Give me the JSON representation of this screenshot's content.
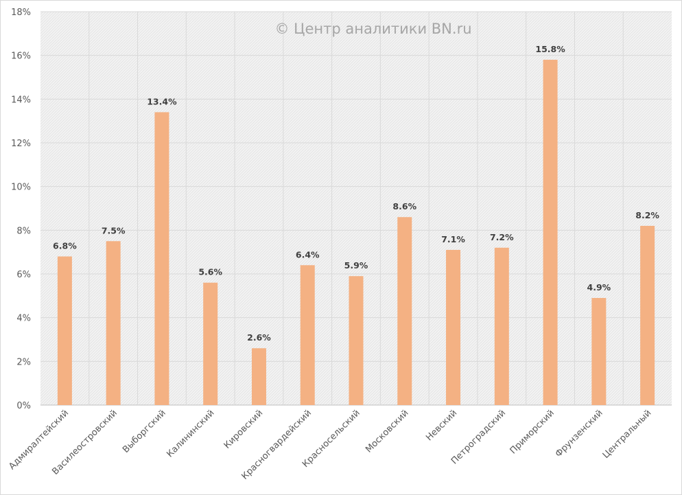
{
  "chart_data": {
    "type": "bar",
    "title": "",
    "watermark": "© Центр аналитики BN.ru",
    "xlabel": "",
    "ylabel": "",
    "categories": [
      "Адмиралтейский",
      "Василеостровский",
      "Выборгский",
      "Калининский",
      "Кировский",
      "Красногвардейский",
      "Красносельский",
      "Московский",
      "Невский",
      "Петроградский",
      "Приморский",
      "Фрунзенский",
      "Центральный"
    ],
    "values": [
      6.8,
      7.5,
      13.4,
      5.6,
      2.6,
      6.4,
      5.9,
      8.6,
      7.1,
      7.2,
      15.8,
      4.9,
      8.2
    ],
    "data_labels": [
      "6.8%",
      "7.5%",
      "13.4%",
      "5.6%",
      "2.6%",
      "6.4%",
      "5.9%",
      "8.6%",
      "7.1%",
      "7.2%",
      "15.8%",
      "4.9%",
      "8.2%"
    ],
    "unit": "%",
    "ylim": [
      0,
      18
    ],
    "yticks": [
      0,
      2,
      4,
      6,
      8,
      10,
      12,
      14,
      16,
      18
    ],
    "ytick_labels": [
      "0%",
      "2%",
      "4%",
      "6%",
      "8%",
      "10%",
      "12%",
      "14%",
      "16%",
      "18%"
    ],
    "grid": true,
    "legend": "none",
    "colors": {
      "bar": "#F4B183",
      "grid": "#d9d9d9",
      "plot_bg": "#f2f2f2",
      "text": "#595959",
      "label": "#404040"
    }
  }
}
